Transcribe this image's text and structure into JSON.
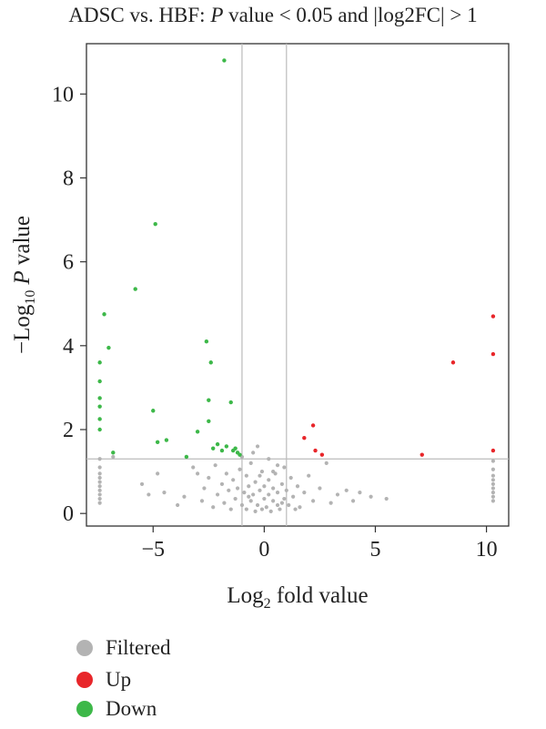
{
  "title": {
    "prefix": "ADSC vs. HBF: ",
    "p_letter": "P",
    "suffix": " value < 0.05 and |log2FC| > 1"
  },
  "chart_data": {
    "type": "scatter",
    "xlabel_base": "Log",
    "xlabel_sub": "2",
    "xlabel_rest": " fold value",
    "ylabel_base": "−Log",
    "ylabel_sub": "10",
    "ylabel_p": "P",
    "ylabel_rest": " value",
    "xlim": [
      -8,
      11
    ],
    "ylim": [
      -0.3,
      11.2
    ],
    "xticks": [
      -5,
      0,
      5,
      10
    ],
    "xtick_labels": [
      "−5",
      "0",
      "5",
      "10"
    ],
    "yticks": [
      0,
      2,
      4,
      6,
      8,
      10
    ],
    "ytick_labels": [
      "0",
      "2",
      "4",
      "6",
      "8",
      "10"
    ],
    "vlines": [
      -1,
      1
    ],
    "hline": 1.3,
    "colors": {
      "Filtered": "#b3b3b3",
      "Up": "#e8262a",
      "Down": "#3db849",
      "axis": "#333333",
      "reference_line": "#bbbbbb"
    },
    "series": [
      {
        "name": "Up",
        "points": [
          [
            10.3,
            4.7
          ],
          [
            10.3,
            3.8
          ],
          [
            10.3,
            1.5
          ],
          [
            8.5,
            3.6
          ],
          [
            2.2,
            2.1
          ],
          [
            1.8,
            1.8
          ],
          [
            2.3,
            1.5
          ],
          [
            2.6,
            1.4
          ],
          [
            7.1,
            1.4
          ]
        ]
      },
      {
        "name": "Down",
        "points": [
          [
            -1.8,
            10.8
          ],
          [
            -4.9,
            6.9
          ],
          [
            -5.8,
            5.35
          ],
          [
            -7.2,
            4.75
          ],
          [
            -7.0,
            3.95
          ],
          [
            -2.6,
            4.1
          ],
          [
            -2.4,
            3.6
          ],
          [
            -7.4,
            3.6
          ],
          [
            -7.4,
            3.15
          ],
          [
            -7.4,
            2.75
          ],
          [
            -7.4,
            2.55
          ],
          [
            -7.4,
            2.25
          ],
          [
            -7.4,
            2.0
          ],
          [
            -5.0,
            2.45
          ],
          [
            -2.5,
            2.7
          ],
          [
            -1.5,
            2.65
          ],
          [
            -2.5,
            2.2
          ],
          [
            -3.0,
            1.95
          ],
          [
            -4.8,
            1.7
          ],
          [
            -4.4,
            1.75
          ],
          [
            -2.1,
            1.65
          ],
          [
            -1.7,
            1.6
          ],
          [
            -2.3,
            1.55
          ],
          [
            -1.9,
            1.5
          ],
          [
            -1.4,
            1.5
          ],
          [
            -1.2,
            1.45
          ],
          [
            -1.1,
            1.4
          ],
          [
            -3.5,
            1.35
          ],
          [
            -6.8,
            1.45
          ],
          [
            -1.3,
            1.55
          ]
        ]
      },
      {
        "name": "Filtered",
        "points": [
          [
            -7.4,
            1.3
          ],
          [
            -7.4,
            1.1
          ],
          [
            -7.4,
            0.95
          ],
          [
            -7.4,
            0.85
          ],
          [
            -7.4,
            0.75
          ],
          [
            -7.4,
            0.65
          ],
          [
            -7.4,
            0.55
          ],
          [
            -7.4,
            0.45
          ],
          [
            -7.4,
            0.35
          ],
          [
            -7.4,
            0.25
          ],
          [
            10.3,
            1.25
          ],
          [
            10.3,
            1.05
          ],
          [
            10.3,
            0.9
          ],
          [
            10.3,
            0.8
          ],
          [
            10.3,
            0.7
          ],
          [
            10.3,
            0.6
          ],
          [
            10.3,
            0.5
          ],
          [
            10.3,
            0.4
          ],
          [
            10.3,
            0.3
          ],
          [
            -6.8,
            1.35
          ],
          [
            -5.5,
            0.7
          ],
          [
            -5.2,
            0.45
          ],
          [
            -4.8,
            0.95
          ],
          [
            -4.5,
            0.5
          ],
          [
            -3.9,
            0.2
          ],
          [
            -3.6,
            0.4
          ],
          [
            -3.2,
            1.1
          ],
          [
            -3.0,
            0.95
          ],
          [
            -2.8,
            0.3
          ],
          [
            -2.7,
            0.6
          ],
          [
            -2.5,
            0.85
          ],
          [
            -2.3,
            0.15
          ],
          [
            -2.2,
            1.15
          ],
          [
            -2.1,
            0.45
          ],
          [
            -1.9,
            0.7
          ],
          [
            -1.8,
            0.25
          ],
          [
            -1.7,
            0.95
          ],
          [
            -1.6,
            0.55
          ],
          [
            -1.5,
            0.1
          ],
          [
            -1.4,
            0.8
          ],
          [
            -1.3,
            0.35
          ],
          [
            -1.2,
            0.6
          ],
          [
            -1.1,
            1.05
          ],
          [
            -1.0,
            0.2
          ],
          [
            -0.9,
            0.5
          ],
          [
            -0.8,
            0.9
          ],
          [
            -0.8,
            0.1
          ],
          [
            -0.7,
            0.65
          ],
          [
            -0.6,
            0.3
          ],
          [
            -0.6,
            1.2
          ],
          [
            -0.5,
            0.45
          ],
          [
            -0.4,
            0.05
          ],
          [
            -0.4,
            0.75
          ],
          [
            -0.3,
            0.2
          ],
          [
            -0.2,
            0.55
          ],
          [
            -0.2,
            0.9
          ],
          [
            -0.1,
            0.1
          ],
          [
            0.0,
            0.35
          ],
          [
            0.0,
            0.65
          ],
          [
            0.1,
            0.15
          ],
          [
            0.2,
            0.45
          ],
          [
            0.2,
            0.8
          ],
          [
            0.3,
            0.05
          ],
          [
            0.4,
            0.3
          ],
          [
            0.4,
            0.6
          ],
          [
            0.5,
            0.95
          ],
          [
            0.6,
            0.2
          ],
          [
            0.6,
            0.5
          ],
          [
            0.7,
            0.1
          ],
          [
            0.8,
            0.7
          ],
          [
            0.9,
            0.35
          ],
          [
            0.9,
            1.1
          ],
          [
            1.0,
            0.55
          ],
          [
            1.1,
            0.2
          ],
          [
            1.2,
            0.85
          ],
          [
            1.3,
            0.4
          ],
          [
            1.5,
            0.65
          ],
          [
            1.6,
            0.15
          ],
          [
            1.8,
            0.5
          ],
          [
            2.0,
            0.9
          ],
          [
            2.2,
            0.3
          ],
          [
            2.5,
            0.6
          ],
          [
            2.8,
            1.2
          ],
          [
            3.0,
            0.25
          ],
          [
            3.3,
            0.45
          ],
          [
            3.7,
            0.55
          ],
          [
            4.0,
            0.3
          ],
          [
            4.3,
            0.5
          ],
          [
            4.8,
            0.4
          ],
          [
            5.5,
            0.35
          ],
          [
            -0.3,
            1.6
          ],
          [
            -0.5,
            1.45
          ],
          [
            0.2,
            1.3
          ],
          [
            0.6,
            1.15
          ],
          [
            -1.0,
            1.35
          ],
          [
            0.4,
            1.0
          ],
          [
            -0.1,
            1.0
          ],
          [
            -0.7,
            0.4
          ],
          [
            0.8,
            0.25
          ],
          [
            1.4,
            0.1
          ]
        ]
      }
    ],
    "legend": {
      "position": "bottom-left",
      "items": [
        {
          "label": "Filtered",
          "series": "Filtered"
        },
        {
          "label": "Up",
          "series": "Up"
        },
        {
          "label": "Down",
          "series": "Down"
        }
      ]
    }
  }
}
